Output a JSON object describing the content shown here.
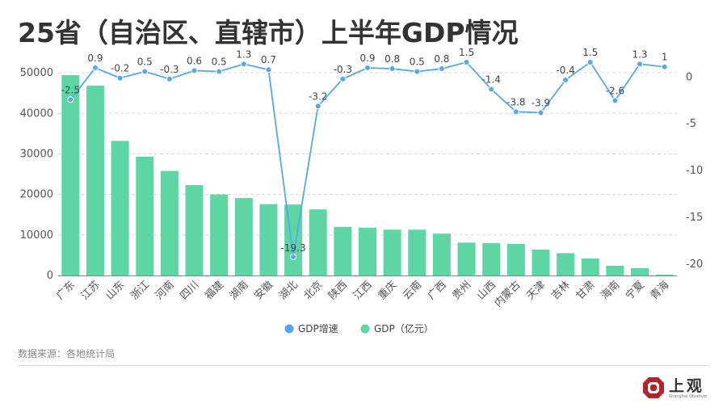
{
  "title": "25省（自治区、直辖市）上半年GDP情况",
  "source": "数据来源：各地统计局",
  "logo": {
    "text": "上观",
    "subtext": "Shanghai Observer"
  },
  "colors": {
    "bar": "#5dd6a4",
    "line": "#55a8ec",
    "grid": "#d8d8d8",
    "axis_text": "#555555"
  },
  "chart_data": {
    "type": "bar+line",
    "categories": [
      "广东",
      "江苏",
      "山东",
      "浙江",
      "河南",
      "四川",
      "福建",
      "湖南",
      "安徽",
      "湖北",
      "北京",
      "陕西",
      "江西",
      "重庆",
      "云南",
      "广西",
      "贵州",
      "山西",
      "内蒙古",
      "天津",
      "吉林",
      "甘肃",
      "海南",
      "宁夏",
      "青海"
    ],
    "series": [
      {
        "name": "GDP（亿元）",
        "type": "bar",
        "axis": "left",
        "values": [
          49400,
          46800,
          33200,
          29300,
          25800,
          22300,
          20000,
          19100,
          17600,
          17500,
          16300,
          12000,
          11800,
          11300,
          11300,
          10300,
          8100,
          8000,
          7800,
          6400,
          5500,
          4200,
          2400,
          1800,
          200
        ]
      },
      {
        "name": "GDP增速",
        "type": "line",
        "axis": "right",
        "values": [
          -2.5,
          0.9,
          -0.2,
          0.5,
          -0.3,
          0.6,
          0.5,
          1.3,
          0.7,
          -19.3,
          -3.2,
          -0.3,
          0.9,
          0.8,
          0.5,
          0.8,
          1.5,
          -1.4,
          -3.8,
          -3.9,
          -0.4,
          1.5,
          -2.6,
          1.3,
          1.0
        ],
        "labels": [
          "-2.5",
          "0.9",
          "-0.2",
          "0.5",
          "-0.3",
          "0.6",
          "0.5",
          "1.3",
          "0.7",
          "-19.3",
          "-3.2",
          "-0.3",
          "0.9",
          "0.8",
          "0.5",
          "0.8",
          "1.5",
          "-1.4",
          "-3.8",
          "-3.9",
          "-0.4",
          "1.5",
          "-2.6",
          "1.3",
          "1"
        ]
      }
    ],
    "left_axis": {
      "ticks": [
        0,
        10000,
        20000,
        30000,
        40000,
        50000
      ],
      "range": [
        0,
        54000
      ]
    },
    "right_axis": {
      "ticks": [
        0,
        -5,
        -10,
        -15,
        -20
      ],
      "range": [
        -21.3,
        2.1
      ]
    },
    "grid": true,
    "legend_position": "bottom"
  }
}
